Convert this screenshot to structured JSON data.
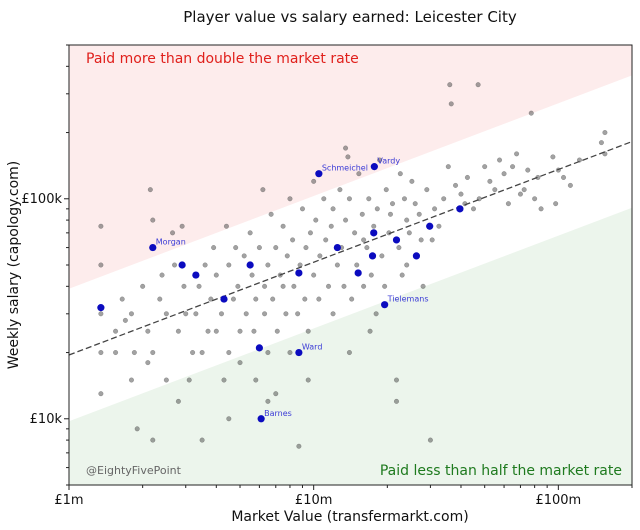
{
  "chart_data": {
    "type": "scatter",
    "title": "Player value vs salary earned: Leicester City",
    "xlabel": "Market Value (transfermarkt.com)",
    "ylabel": "Weekly salary (capology.com)",
    "xscale": "log",
    "yscale": "log",
    "xlim": [
      1000000,
      200000000
    ],
    "ylim": [
      5000,
      500000
    ],
    "x_ticks": [
      {
        "value": 1000000,
        "label": "£1m"
      },
      {
        "value": 10000000,
        "label": "£10m"
      },
      {
        "value": 100000000,
        "label": "£100m"
      }
    ],
    "y_ticks": [
      {
        "value": 10000,
        "label": "£10k"
      },
      {
        "value": 100000,
        "label": "£100k"
      }
    ],
    "bands": {
      "upper_label": "Paid more than double the market rate",
      "lower_label": "Paid less than half the market rate",
      "upper_color": "#fdecec",
      "lower_color": "#ecf5ec"
    },
    "fit_line": {
      "x": [
        1000000,
        200000000
      ],
      "y": [
        19500,
        182000
      ]
    },
    "credit": "@EightyFivePoint",
    "highlight_color": "#0b0bbf",
    "other_color": "#555555",
    "highlighted": [
      {
        "name": "Vardy",
        "x": 17700000,
        "y": 140000
      },
      {
        "name": "Schmeichel",
        "x": 10500000,
        "y": 130000
      },
      {
        "name": "Morgan",
        "x": 2200000,
        "y": 60000
      },
      {
        "name": "Tielemans",
        "x": 19500000,
        "y": 33000
      },
      {
        "name": "Ward",
        "x": 8700000,
        "y": 20000
      },
      {
        "name": "Barnes",
        "x": 6100000,
        "y": 10000
      },
      {
        "name": "",
        "x": 1350000,
        "y": 32000
      },
      {
        "name": "",
        "x": 2900000,
        "y": 50000
      },
      {
        "name": "",
        "x": 3300000,
        "y": 45000
      },
      {
        "name": "",
        "x": 4300000,
        "y": 35000
      },
      {
        "name": "",
        "x": 5500000,
        "y": 50000
      },
      {
        "name": "",
        "x": 6000000,
        "y": 21000
      },
      {
        "name": "",
        "x": 8700000,
        "y": 46000
      },
      {
        "name": "",
        "x": 12500000,
        "y": 60000
      },
      {
        "name": "",
        "x": 15200000,
        "y": 46000
      },
      {
        "name": "",
        "x": 17400000,
        "y": 55000
      },
      {
        "name": "",
        "x": 17600000,
        "y": 70000
      },
      {
        "name": "",
        "x": 21800000,
        "y": 65000
      },
      {
        "name": "",
        "x": 26300000,
        "y": 55000
      },
      {
        "name": "",
        "x": 29800000,
        "y": 75000
      },
      {
        "name": "",
        "x": 39600000,
        "y": 90000
      }
    ],
    "others": [
      [
        1350000,
        75000
      ],
      [
        1350000,
        50000
      ],
      [
        1350000,
        30000
      ],
      [
        1350000,
        20000
      ],
      [
        1350000,
        13000
      ],
      [
        1550000,
        25000
      ],
      [
        1550000,
        20000
      ],
      [
        1650000,
        35000
      ],
      [
        1700000,
        28000
      ],
      [
        1800000,
        30000
      ],
      [
        1800000,
        15000
      ],
      [
        1850000,
        20000
      ],
      [
        1900000,
        9000
      ],
      [
        2000000,
        40000
      ],
      [
        2100000,
        25000
      ],
      [
        2100000,
        18000
      ],
      [
        2150000,
        110000
      ],
      [
        2200000,
        80000
      ],
      [
        2200000,
        20000
      ],
      [
        2200000,
        8000
      ],
      [
        2350000,
        35000
      ],
      [
        2400000,
        45000
      ],
      [
        2500000,
        30000
      ],
      [
        2500000,
        15000
      ],
      [
        2650000,
        70000
      ],
      [
        2700000,
        50000
      ],
      [
        2800000,
        25000
      ],
      [
        2900000,
        75000
      ],
      [
        2950000,
        40000
      ],
      [
        3000000,
        30000
      ],
      [
        3100000,
        15000
      ],
      [
        3200000,
        20000
      ],
      [
        3300000,
        30000
      ],
      [
        3400000,
        40000
      ],
      [
        3500000,
        20000
      ],
      [
        3500000,
        8000
      ],
      [
        3600000,
        50000
      ],
      [
        3700000,
        25000
      ],
      [
        3800000,
        35000
      ],
      [
        3900000,
        60000
      ],
      [
        4000000,
        45000
      ],
      [
        4000000,
        25000
      ],
      [
        4200000,
        30000
      ],
      [
        4300000,
        15000
      ],
      [
        4400000,
        75000
      ],
      [
        4500000,
        50000
      ],
      [
        4500000,
        20000
      ],
      [
        4500000,
        10000
      ],
      [
        4700000,
        35000
      ],
      [
        4800000,
        60000
      ],
      [
        4900000,
        40000
      ],
      [
        5000000,
        25000
      ],
      [
        5000000,
        18000
      ],
      [
        5200000,
        55000
      ],
      [
        5300000,
        30000
      ],
      [
        5500000,
        70000
      ],
      [
        5600000,
        45000
      ],
      [
        5700000,
        25000
      ],
      [
        5800000,
        35000
      ],
      [
        5800000,
        15000
      ],
      [
        6000000,
        60000
      ],
      [
        6200000,
        110000
      ],
      [
        6300000,
        40000
      ],
      [
        6300000,
        30000
      ],
      [
        6500000,
        50000
      ],
      [
        6500000,
        20000
      ],
      [
        6700000,
        85000
      ],
      [
        6800000,
        35000
      ],
      [
        7000000,
        60000
      ],
      [
        7100000,
        25000
      ],
      [
        7300000,
        45000
      ],
      [
        7500000,
        75000
      ],
      [
        7500000,
        40000
      ],
      [
        7700000,
        30000
      ],
      [
        7800000,
        55000
      ],
      [
        8000000,
        20000
      ],
      [
        8000000,
        100000
      ],
      [
        8200000,
        65000
      ],
      [
        8300000,
        40000
      ],
      [
        8600000,
        30000
      ],
      [
        8700000,
        7500
      ],
      [
        8800000,
        50000
      ],
      [
        9000000,
        90000
      ],
      [
        9200000,
        35000
      ],
      [
        9300000,
        60000
      ],
      [
        9500000,
        25000
      ],
      [
        9700000,
        70000
      ],
      [
        10000000,
        45000
      ],
      [
        10000000,
        120000
      ],
      [
        10200000,
        80000
      ],
      [
        10500000,
        35000
      ],
      [
        10600000,
        55000
      ],
      [
        11000000,
        100000
      ],
      [
        11200000,
        65000
      ],
      [
        11500000,
        40000
      ],
      [
        11800000,
        75000
      ],
      [
        12000000,
        30000
      ],
      [
        12000000,
        90000
      ],
      [
        12500000,
        50000
      ],
      [
        12800000,
        110000
      ],
      [
        13000000,
        60000
      ],
      [
        13300000,
        40000
      ],
      [
        13500000,
        80000
      ],
      [
        13800000,
        155000
      ],
      [
        14000000,
        100000
      ],
      [
        14300000,
        35000
      ],
      [
        14700000,
        70000
      ],
      [
        15000000,
        50000
      ],
      [
        15300000,
        130000
      ],
      [
        15800000,
        85000
      ],
      [
        16000000,
        40000
      ],
      [
        16500000,
        60000
      ],
      [
        16800000,
        100000
      ],
      [
        17200000,
        45000
      ],
      [
        17600000,
        75000
      ],
      [
        18000000,
        30000
      ],
      [
        18200000,
        90000
      ],
      [
        18600000,
        150000
      ],
      [
        19000000,
        55000
      ],
      [
        19500000,
        40000
      ],
      [
        19800000,
        110000
      ],
      [
        20300000,
        70000
      ],
      [
        20600000,
        85000
      ],
      [
        21000000,
        95000
      ],
      [
        21800000,
        15000
      ],
      [
        21800000,
        12000
      ],
      [
        22300000,
        60000
      ],
      [
        22600000,
        130000
      ],
      [
        23000000,
        45000
      ],
      [
        23500000,
        100000
      ],
      [
        24000000,
        80000
      ],
      [
        24600000,
        70000
      ],
      [
        25200000,
        120000
      ],
      [
        26000000,
        95000
      ],
      [
        27000000,
        85000
      ],
      [
        28000000,
        40000
      ],
      [
        29000000,
        110000
      ],
      [
        30000000,
        8000
      ],
      [
        30500000,
        65000
      ],
      [
        31200000,
        90000
      ],
      [
        32500000,
        75000
      ],
      [
        34000000,
        100000
      ],
      [
        35500000,
        140000
      ],
      [
        36500000,
        270000
      ],
      [
        38000000,
        115000
      ],
      [
        40000000,
        105000
      ],
      [
        41500000,
        95000
      ],
      [
        42500000,
        125000
      ],
      [
        45000000,
        90000
      ],
      [
        47500000,
        100000
      ],
      [
        50000000,
        140000
      ],
      [
        52500000,
        120000
      ],
      [
        55000000,
        110000
      ],
      [
        57500000,
        150000
      ],
      [
        60000000,
        130000
      ],
      [
        62500000,
        95000
      ],
      [
        65000000,
        140000
      ],
      [
        67500000,
        160000
      ],
      [
        70000000,
        105000
      ],
      [
        72500000,
        110000
      ],
      [
        75000000,
        135000
      ],
      [
        77500000,
        245000
      ],
      [
        80000000,
        100000
      ],
      [
        82500000,
        125000
      ],
      [
        85000000,
        90000
      ],
      [
        95000000,
        155000
      ],
      [
        97500000,
        95000
      ],
      [
        100000000,
        135000
      ],
      [
        105000000,
        125000
      ],
      [
        112000000,
        115000
      ],
      [
        122000000,
        150000
      ],
      [
        150000000,
        180000
      ],
      [
        155000000,
        200000
      ],
      [
        155000000,
        160000
      ],
      [
        36000000,
        330000
      ],
      [
        47000000,
        330000
      ],
      [
        24000000,
        50000
      ],
      [
        27500000,
        65000
      ],
      [
        16000000,
        65000
      ],
      [
        13500000,
        170000
      ],
      [
        7000000,
        13000
      ],
      [
        9500000,
        15000
      ],
      [
        14000000,
        20000
      ],
      [
        17000000,
        25000
      ],
      [
        2800000,
        12000
      ],
      [
        6500000,
        12000
      ]
    ]
  }
}
